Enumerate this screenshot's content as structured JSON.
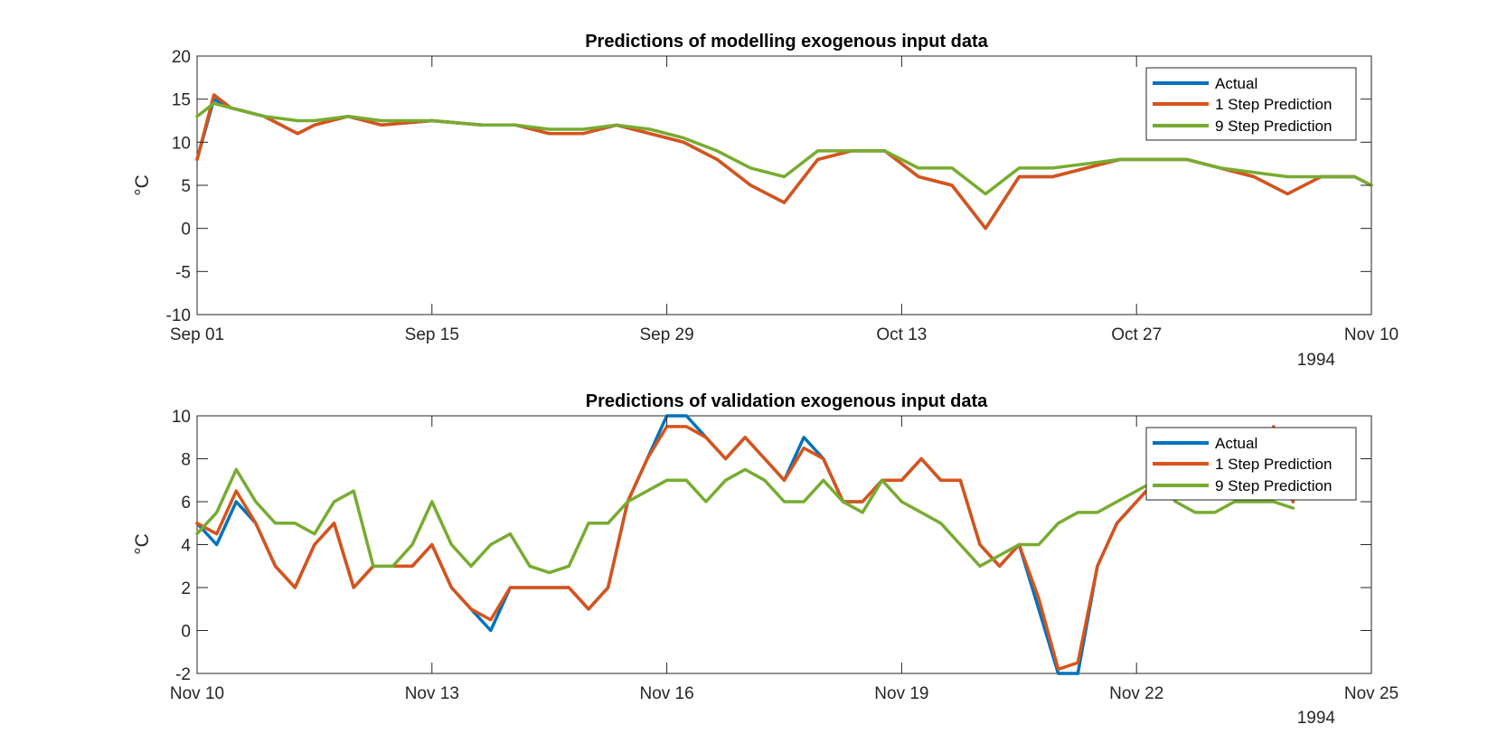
{
  "figure": {
    "background": "#ffffff"
  },
  "chart_data": [
    {
      "type": "line",
      "title": "Predictions of modelling exogenous input data",
      "xlabel": "",
      "ylabel": "°C",
      "x_unit": "date",
      "xlim": [
        "1994-09-01",
        "1994-11-10"
      ],
      "ylim": [
        -10,
        20
      ],
      "x_ticks": [
        {
          "date": "1994-09-01",
          "label": "Sep 01"
        },
        {
          "date": "1994-09-15",
          "label": "Sep 15"
        },
        {
          "date": "1994-09-29",
          "label": "Sep 29"
        },
        {
          "date": "1994-10-13",
          "label": "Oct 13"
        },
        {
          "date": "1994-10-27",
          "label": "Oct 27"
        },
        {
          "date": "1994-11-10",
          "label": "Nov 10"
        }
      ],
      "y_ticks": [
        -10,
        -5,
        0,
        5,
        10,
        15,
        20
      ],
      "year_label": "1994",
      "grid": false,
      "legend_position": "top-right",
      "series": [
        {
          "name": "Actual",
          "color": "#0072BD",
          "x": [
            "1994-09-01",
            "1994-09-02",
            "1994-09-03",
            "1994-09-05",
            "1994-09-07",
            "1994-09-08",
            "1994-09-10",
            "1994-09-12",
            "1994-09-15",
            "1994-09-18",
            "1994-09-20",
            "1994-09-22",
            "1994-09-24",
            "1994-09-26",
            "1994-09-28",
            "1994-09-30",
            "1994-10-02",
            "1994-10-04",
            "1994-10-06",
            "1994-10-08",
            "1994-10-10",
            "1994-10-12",
            "1994-10-14",
            "1994-10-16",
            "1994-10-18",
            "1994-10-20",
            "1994-10-22",
            "1994-10-24",
            "1994-10-26",
            "1994-10-28",
            "1994-10-30",
            "1994-11-01",
            "1994-11-03",
            "1994-11-05",
            "1994-11-07",
            "1994-11-09",
            "1994-11-10"
          ],
          "y": [
            8,
            15,
            14,
            13,
            11,
            12,
            13,
            12,
            12.5,
            12,
            12,
            11,
            11,
            12,
            11,
            10,
            8,
            5,
            3,
            8,
            9,
            9,
            6,
            5,
            0,
            6,
            6,
            7,
            8,
            8,
            8,
            7,
            6,
            4,
            6,
            6,
            5
          ]
        },
        {
          "name": "1 Step Prediction",
          "color": "#D95319",
          "x": [
            "1994-09-01",
            "1994-09-02",
            "1994-09-03",
            "1994-09-05",
            "1994-09-07",
            "1994-09-08",
            "1994-09-10",
            "1994-09-12",
            "1994-09-15",
            "1994-09-18",
            "1994-09-20",
            "1994-09-22",
            "1994-09-24",
            "1994-09-26",
            "1994-09-28",
            "1994-09-30",
            "1994-10-02",
            "1994-10-04",
            "1994-10-06",
            "1994-10-08",
            "1994-10-10",
            "1994-10-12",
            "1994-10-14",
            "1994-10-16",
            "1994-10-18",
            "1994-10-20",
            "1994-10-22",
            "1994-10-24",
            "1994-10-26",
            "1994-10-28",
            "1994-10-30",
            "1994-11-01",
            "1994-11-03",
            "1994-11-05",
            "1994-11-07",
            "1994-11-09",
            "1994-11-10"
          ],
          "y": [
            8,
            15.5,
            14,
            13,
            11,
            12,
            13,
            12,
            12.5,
            12,
            12,
            11,
            11,
            12,
            11,
            10,
            8,
            5,
            3,
            8,
            9,
            9,
            6,
            5,
            0,
            6,
            6,
            7,
            8,
            8,
            8,
            7,
            6,
            4,
            6,
            6,
            5
          ]
        },
        {
          "name": "9 Step Prediction",
          "color": "#77AC30",
          "x": [
            "1994-09-01",
            "1994-09-02",
            "1994-09-03",
            "1994-09-05",
            "1994-09-07",
            "1994-09-08",
            "1994-09-10",
            "1994-09-12",
            "1994-09-15",
            "1994-09-18",
            "1994-09-20",
            "1994-09-22",
            "1994-09-24",
            "1994-09-26",
            "1994-09-28",
            "1994-09-30",
            "1994-10-02",
            "1994-10-04",
            "1994-10-06",
            "1994-10-08",
            "1994-10-10",
            "1994-10-12",
            "1994-10-14",
            "1994-10-16",
            "1994-10-18",
            "1994-10-20",
            "1994-10-22",
            "1994-10-24",
            "1994-10-26",
            "1994-10-28",
            "1994-10-30",
            "1994-11-01",
            "1994-11-03",
            "1994-11-05",
            "1994-11-07",
            "1994-11-09",
            "1994-11-10"
          ],
          "y": [
            13,
            14.5,
            14,
            13,
            12.5,
            12.5,
            13,
            12.5,
            12.5,
            12,
            12,
            11.5,
            11.5,
            12,
            11.5,
            10.5,
            9,
            7,
            6,
            9,
            9,
            9,
            7,
            7,
            4,
            7,
            7,
            7.5,
            8,
            8,
            8,
            7,
            6.5,
            6,
            6,
            6,
            5
          ]
        }
      ]
    },
    {
      "type": "line",
      "title": "Predictions of validation exogenous input data",
      "xlabel": "",
      "ylabel": "°C",
      "x_unit": "date",
      "xlim": [
        "1994-11-10",
        "1994-11-25"
      ],
      "ylim": [
        -2,
        10
      ],
      "x_ticks": [
        {
          "date": "1994-11-10",
          "label": "Nov 10"
        },
        {
          "date": "1994-11-13",
          "label": "Nov 13"
        },
        {
          "date": "1994-11-16",
          "label": "Nov 16"
        },
        {
          "date": "1994-11-19",
          "label": "Nov 19"
        },
        {
          "date": "1994-11-22",
          "label": "Nov 22"
        },
        {
          "date": "1994-11-25",
          "label": "Nov 25"
        }
      ],
      "y_ticks": [
        -2,
        0,
        2,
        4,
        6,
        8,
        10
      ],
      "year_label": "1994",
      "grid": false,
      "legend_position": "top-right",
      "series": [
        {
          "name": "Actual",
          "color": "#0072BD",
          "x": [
            "1994-11-10T00:00",
            "1994-11-10T06:00",
            "1994-11-10T12:00",
            "1994-11-10T18:00",
            "1994-11-11T00:00",
            "1994-11-11T06:00",
            "1994-11-11T12:00",
            "1994-11-11T18:00",
            "1994-11-12T00:00",
            "1994-11-12T06:00",
            "1994-11-12T12:00",
            "1994-11-12T18:00",
            "1994-11-13T00:00",
            "1994-11-13T06:00",
            "1994-11-13T12:00",
            "1994-11-13T18:00",
            "1994-11-14T00:00",
            "1994-11-14T06:00",
            "1994-11-14T12:00",
            "1994-11-14T18:00",
            "1994-11-15T00:00",
            "1994-11-15T06:00",
            "1994-11-15T12:00",
            "1994-11-15T18:00",
            "1994-11-16T00:00",
            "1994-11-16T06:00",
            "1994-11-16T12:00",
            "1994-11-16T18:00",
            "1994-11-17T00:00",
            "1994-11-17T06:00",
            "1994-11-17T12:00",
            "1994-11-17T18:00",
            "1994-11-18T00:00",
            "1994-11-18T06:00",
            "1994-11-18T12:00",
            "1994-11-18T18:00",
            "1994-11-19T00:00",
            "1994-11-19T06:00",
            "1994-11-19T12:00",
            "1994-11-19T18:00",
            "1994-11-20T00:00",
            "1994-11-20T06:00",
            "1994-11-20T12:00",
            "1994-11-20T18:00",
            "1994-11-21T00:00",
            "1994-11-21T06:00",
            "1994-11-21T12:00",
            "1994-11-21T18:00",
            "1994-11-22T00:00",
            "1994-11-22T06:00",
            "1994-11-22T12:00",
            "1994-11-22T18:00",
            "1994-11-23T00:00",
            "1994-11-23T06:00",
            "1994-11-23T12:00",
            "1994-11-23T18:00",
            "1994-11-24T00:00"
          ],
          "y": [
            5,
            4,
            6,
            5,
            3,
            2,
            4,
            5,
            2,
            3,
            3,
            3,
            4,
            2,
            1,
            0,
            2,
            2,
            2,
            2,
            1,
            2,
            6,
            8,
            10,
            10,
            9,
            8,
            9,
            8,
            7,
            9,
            8,
            6,
            6,
            7,
            7,
            8,
            7,
            7,
            4,
            3,
            4,
            1,
            -2,
            -2,
            3,
            5,
            6,
            7,
            8,
            9,
            7,
            7,
            7,
            8,
            6
          ]
        },
        {
          "name": "1 Step Prediction",
          "color": "#D95319",
          "x": [
            "1994-11-10T00:00",
            "1994-11-10T06:00",
            "1994-11-10T12:00",
            "1994-11-10T18:00",
            "1994-11-11T00:00",
            "1994-11-11T06:00",
            "1994-11-11T12:00",
            "1994-11-11T18:00",
            "1994-11-12T00:00",
            "1994-11-12T06:00",
            "1994-11-12T12:00",
            "1994-11-12T18:00",
            "1994-11-13T00:00",
            "1994-11-13T06:00",
            "1994-11-13T12:00",
            "1994-11-13T18:00",
            "1994-11-14T00:00",
            "1994-11-14T06:00",
            "1994-11-14T12:00",
            "1994-11-14T18:00",
            "1994-11-15T00:00",
            "1994-11-15T06:00",
            "1994-11-15T12:00",
            "1994-11-15T18:00",
            "1994-11-16T00:00",
            "1994-11-16T06:00",
            "1994-11-16T12:00",
            "1994-11-16T18:00",
            "1994-11-17T00:00",
            "1994-11-17T06:00",
            "1994-11-17T12:00",
            "1994-11-17T18:00",
            "1994-11-18T00:00",
            "1994-11-18T06:00",
            "1994-11-18T12:00",
            "1994-11-18T18:00",
            "1994-11-19T00:00",
            "1994-11-19T06:00",
            "1994-11-19T12:00",
            "1994-11-19T18:00",
            "1994-11-20T00:00",
            "1994-11-20T06:00",
            "1994-11-20T12:00",
            "1994-11-20T18:00",
            "1994-11-21T00:00",
            "1994-11-21T06:00",
            "1994-11-21T12:00",
            "1994-11-21T18:00",
            "1994-11-22T00:00",
            "1994-11-22T06:00",
            "1994-11-22T12:00",
            "1994-11-22T18:00",
            "1994-11-23T00:00",
            "1994-11-23T06:00",
            "1994-11-23T12:00",
            "1994-11-23T18:00",
            "1994-11-24T00:00"
          ],
          "y": [
            5,
            4.5,
            6.5,
            5,
            3,
            2,
            4,
            5,
            2,
            3,
            3,
            3,
            4,
            2,
            1,
            0.5,
            2,
            2,
            2,
            2,
            1,
            2,
            6,
            8,
            9.5,
            9.5,
            9,
            8,
            9,
            8,
            7,
            8.5,
            8,
            6,
            6,
            7,
            7,
            8,
            7,
            7,
            4,
            3,
            4,
            1.5,
            -1.8,
            -1.5,
            3,
            5,
            6,
            7,
            8,
            9,
            7,
            7,
            7,
            9.5,
            6
          ]
        },
        {
          "name": "9 Step Prediction",
          "color": "#77AC30",
          "x": [
            "1994-11-10T00:00",
            "1994-11-10T06:00",
            "1994-11-10T12:00",
            "1994-11-10T18:00",
            "1994-11-11T00:00",
            "1994-11-11T06:00",
            "1994-11-11T12:00",
            "1994-11-11T18:00",
            "1994-11-12T00:00",
            "1994-11-12T06:00",
            "1994-11-12T12:00",
            "1994-11-12T18:00",
            "1994-11-13T00:00",
            "1994-11-13T06:00",
            "1994-11-13T12:00",
            "1994-11-13T18:00",
            "1994-11-14T00:00",
            "1994-11-14T06:00",
            "1994-11-14T12:00",
            "1994-11-14T18:00",
            "1994-11-15T00:00",
            "1994-11-15T06:00",
            "1994-11-15T12:00",
            "1994-11-15T18:00",
            "1994-11-16T00:00",
            "1994-11-16T06:00",
            "1994-11-16T12:00",
            "1994-11-16T18:00",
            "1994-11-17T00:00",
            "1994-11-17T06:00",
            "1994-11-17T12:00",
            "1994-11-17T18:00",
            "1994-11-18T00:00",
            "1994-11-18T06:00",
            "1994-11-18T12:00",
            "1994-11-18T18:00",
            "1994-11-19T00:00",
            "1994-11-19T06:00",
            "1994-11-19T12:00",
            "1994-11-19T18:00",
            "1994-11-20T00:00",
            "1994-11-20T06:00",
            "1994-11-20T12:00",
            "1994-11-20T18:00",
            "1994-11-21T00:00",
            "1994-11-21T06:00",
            "1994-11-21T12:00",
            "1994-11-21T18:00",
            "1994-11-22T00:00",
            "1994-11-22T06:00",
            "1994-11-22T12:00",
            "1994-11-22T18:00",
            "1994-11-23T00:00",
            "1994-11-23T06:00",
            "1994-11-23T12:00",
            "1994-11-23T18:00",
            "1994-11-24T00:00"
          ],
          "y": [
            4.5,
            5.5,
            7.5,
            6,
            5,
            5,
            4.5,
            6,
            6.5,
            3,
            3,
            4,
            6,
            4,
            3,
            4,
            4.5,
            3,
            2.7,
            3,
            5,
            5,
            6,
            6.5,
            7,
            7,
            6,
            7,
            7.5,
            7,
            6,
            6,
            7,
            6,
            5.5,
            7,
            6,
            5.5,
            5,
            4,
            3,
            3.5,
            4,
            4,
            5,
            5.5,
            5.5,
            6,
            6.5,
            7,
            6,
            5.5,
            5.5,
            6,
            6,
            6,
            5.7
          ]
        }
      ]
    }
  ]
}
